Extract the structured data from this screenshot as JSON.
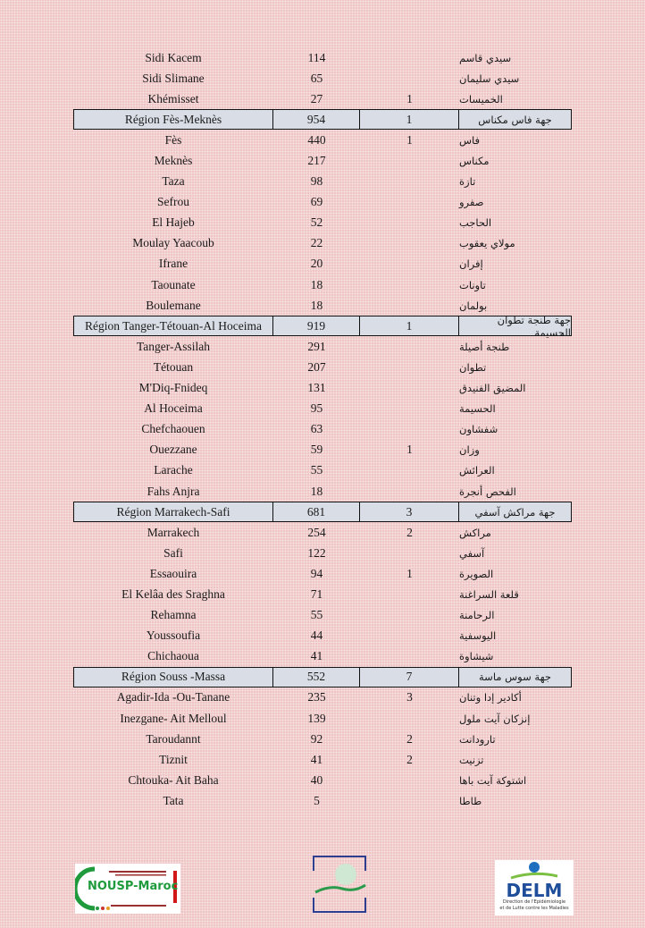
{
  "table": {
    "rows": [
      {
        "name": "Sidi Kacem",
        "count": "114",
        "deaths": "",
        "ar": "سيدي قاسم",
        "region": false
      },
      {
        "name": "Sidi Slimane",
        "count": "65",
        "deaths": "",
        "ar": "سيدي سليمان",
        "region": false
      },
      {
        "name": "Khémisset",
        "count": "27",
        "deaths": "1",
        "ar": "الخميسات",
        "region": false
      },
      {
        "name": "Région Fès-Meknès",
        "count": "954",
        "deaths": "1",
        "ar": "جهة فاس مكناس",
        "region": true
      },
      {
        "name": "Fès",
        "count": "440",
        "deaths": "1",
        "ar": "فاس",
        "region": false
      },
      {
        "name": "Meknès",
        "count": "217",
        "deaths": "",
        "ar": "مكناس",
        "region": false
      },
      {
        "name": "Taza",
        "count": "98",
        "deaths": "",
        "ar": "تازة",
        "region": false
      },
      {
        "name": "Sefrou",
        "count": "69",
        "deaths": "",
        "ar": "صفرو",
        "region": false
      },
      {
        "name": "El  Hajeb",
        "count": "52",
        "deaths": "",
        "ar": "الحاجب",
        "region": false
      },
      {
        "name": "Moulay Yaacoub",
        "count": "22",
        "deaths": "",
        "ar": "مولاي يعقوب",
        "region": false
      },
      {
        "name": "Ifrane",
        "count": "20",
        "deaths": "",
        "ar": "إفران",
        "region": false
      },
      {
        "name": "Taounate",
        "count": "18",
        "deaths": "",
        "ar": "تاونات",
        "region": false
      },
      {
        "name": "Boulemane",
        "count": "18",
        "deaths": "",
        "ar": "بولمان",
        "region": false
      },
      {
        "name": "Région Tanger-Tétouan-Al Hoceima",
        "count": "919",
        "deaths": "1",
        "ar": "جهة طنجة تطوان الحسيمة",
        "region": true
      },
      {
        "name": "Tanger-Assilah",
        "count": "291",
        "deaths": "",
        "ar": "طنجة أصيلة",
        "region": false
      },
      {
        "name": "Tétouan",
        "count": "207",
        "deaths": "",
        "ar": "تطوان",
        "region": false
      },
      {
        "name": "M'Diq-Fnideq",
        "count": "131",
        "deaths": "",
        "ar": "المضيق الفنيدق",
        "region": false
      },
      {
        "name": "Al Hoceima",
        "count": "95",
        "deaths": "",
        "ar": "الحسيمة",
        "region": false
      },
      {
        "name": "Chefchaouen",
        "count": "63",
        "deaths": "",
        "ar": "شفشاون",
        "region": false
      },
      {
        "name": "Ouezzane",
        "count": "59",
        "deaths": "1",
        "ar": "وزان",
        "region": false
      },
      {
        "name": "Larache",
        "count": "55",
        "deaths": "",
        "ar": "العرائش",
        "region": false
      },
      {
        "name": "Fahs Anjra",
        "count": "18",
        "deaths": "",
        "ar": "الفحص أنجرة",
        "region": false
      },
      {
        "name": "Région Marrakech-Safi",
        "count": "681",
        "deaths": "3",
        "ar": "جهة مراكش آسفي",
        "region": true
      },
      {
        "name": "Marrakech",
        "count": "254",
        "deaths": "2",
        "ar": "مراكش",
        "region": false
      },
      {
        "name": "Safi",
        "count": "122",
        "deaths": "",
        "ar": "آسفي",
        "region": false
      },
      {
        "name": "Essaouira",
        "count": "94",
        "deaths": "1",
        "ar": "الصويرة",
        "region": false
      },
      {
        "name": "El Kelâa des Sraghna",
        "count": "71",
        "deaths": "",
        "ar": "قلعة السراغنة",
        "region": false
      },
      {
        "name": "Rehamna",
        "count": "55",
        "deaths": "",
        "ar": "الرحامنة",
        "region": false
      },
      {
        "name": "Youssoufia",
        "count": "44",
        "deaths": "",
        "ar": "اليوسفية",
        "region": false
      },
      {
        "name": "Chichaoua",
        "count": "41",
        "deaths": "",
        "ar": "شيشاوة",
        "region": false
      },
      {
        "name": "Région Souss -Massa",
        "count": "552",
        "deaths": "7",
        "ar": "جهة سوس ماسة",
        "region": true
      },
      {
        "name": "Agadir-Ida -Ou-Tanane",
        "count": "235",
        "deaths": "3",
        "ar": "أكادير إدا وتنان",
        "region": false
      },
      {
        "name": "Inezgane- Ait Melloul",
        "count": "139",
        "deaths": "",
        "ar": "إنزكان آيت ملول",
        "region": false
      },
      {
        "name": "Taroudannt",
        "count": "92",
        "deaths": "2",
        "ar": "تارودانت",
        "region": false
      },
      {
        "name": "Tiznit",
        "count": "41",
        "deaths": "2",
        "ar": "تزنيت",
        "region": false
      },
      {
        "name": "Chtouka- Ait Baha",
        "count": "40",
        "deaths": "",
        "ar": "اشتوكة آيت باها",
        "region": false
      },
      {
        "name": "Tata",
        "count": "5",
        "deaths": "",
        "ar": "طاطا",
        "region": false
      }
    ]
  },
  "footer": {
    "logo_left": "NOUSP-Maroc",
    "logo_right": "DELM",
    "logo_right_sub1": "Direction de l'Epidémiologie",
    "logo_right_sub2": "et de Lutte contre les Maladies"
  },
  "colors": {
    "background": "#efc6c6",
    "region_row": "#d9dee6",
    "green": "#1f9a3c",
    "blue": "#1f4e9a"
  }
}
